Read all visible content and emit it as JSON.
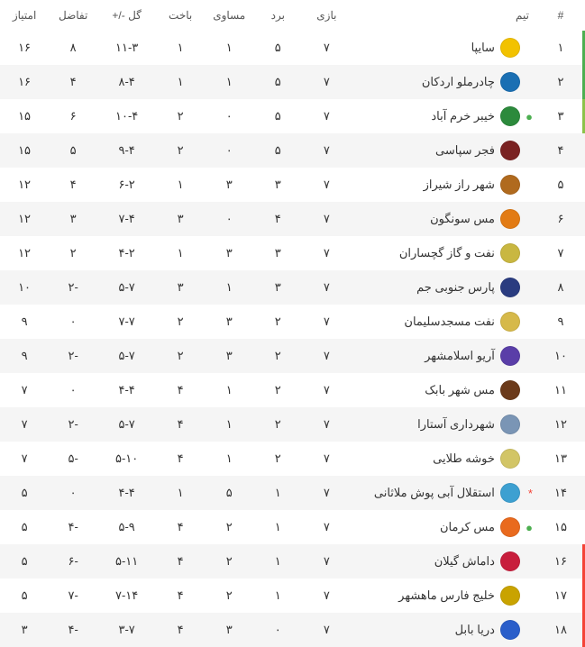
{
  "columns": {
    "rank": "#",
    "team": "تیم",
    "played": "بازی",
    "wins": "برد",
    "draws": "مساوی",
    "losses": "باخت",
    "goals": "گل -/+",
    "diff": "تفاضل",
    "points": "امتیاز"
  },
  "rank_bars": {
    "1": "bar-green",
    "2": "bar-green",
    "3": "bar-lightgreen",
    "16": "bar-red",
    "17": "bar-red",
    "18": "bar-red"
  },
  "rows": [
    {
      "rank": "۱",
      "team": "سایپا",
      "logo": "#f2c200",
      "marker": "",
      "marker_class": "",
      "played": "۷",
      "wins": "۵",
      "draws": "۱",
      "losses": "۱",
      "goals": "۱۱-۳",
      "diff": "۸",
      "points": "۱۶"
    },
    {
      "rank": "۲",
      "team": "چادرملو اردکان",
      "logo": "#1a6fb3",
      "marker": "",
      "marker_class": "",
      "played": "۷",
      "wins": "۵",
      "draws": "۱",
      "losses": "۱",
      "goals": "۸-۴",
      "diff": "۴",
      "points": "۱۶"
    },
    {
      "rank": "۳",
      "team": "خیبر خرم آباد",
      "logo": "#2c8a3c",
      "marker": "●",
      "marker_class": "marker-green",
      "played": "۷",
      "wins": "۵",
      "draws": "۰",
      "losses": "۲",
      "goals": "۱۰-۴",
      "diff": "۶",
      "points": "۱۵"
    },
    {
      "rank": "۴",
      "team": "فجر سپاسی",
      "logo": "#7a2222",
      "marker": "",
      "marker_class": "",
      "played": "۷",
      "wins": "۵",
      "draws": "۰",
      "losses": "۲",
      "goals": "۹-۴",
      "diff": "۵",
      "points": "۱۵"
    },
    {
      "rank": "۵",
      "team": "شهر راز شیراز",
      "logo": "#b06a1e",
      "marker": "",
      "marker_class": "",
      "played": "۷",
      "wins": "۳",
      "draws": "۳",
      "losses": "۱",
      "goals": "۶-۲",
      "diff": "۴",
      "points": "۱۲"
    },
    {
      "rank": "۶",
      "team": "مس سونگون",
      "logo": "#e27b14",
      "marker": "",
      "marker_class": "",
      "played": "۷",
      "wins": "۴",
      "draws": "۰",
      "losses": "۳",
      "goals": "۷-۴",
      "diff": "۳",
      "points": "۱۲"
    },
    {
      "rank": "۷",
      "team": "نفت و گاز گچساران",
      "logo": "#c9b741",
      "marker": "",
      "marker_class": "",
      "played": "۷",
      "wins": "۳",
      "draws": "۳",
      "losses": "۱",
      "goals": "۴-۲",
      "diff": "۲",
      "points": "۱۲"
    },
    {
      "rank": "۸",
      "team": "پارس جنوبی جم",
      "logo": "#2a3c80",
      "marker": "",
      "marker_class": "",
      "played": "۷",
      "wins": "۳",
      "draws": "۱",
      "losses": "۳",
      "goals": "۵-۷",
      "diff": "-۲",
      "points": "۱۰"
    },
    {
      "rank": "۹",
      "team": "نفت مسجدسلیمان",
      "logo": "#d6b94a",
      "marker": "",
      "marker_class": "",
      "played": "۷",
      "wins": "۲",
      "draws": "۳",
      "losses": "۲",
      "goals": "۷-۷",
      "diff": "۰",
      "points": "۹"
    },
    {
      "rank": "۱۰",
      "team": "آریو اسلامشهر",
      "logo": "#5a3ea8",
      "marker": "",
      "marker_class": "",
      "played": "۷",
      "wins": "۲",
      "draws": "۳",
      "losses": "۲",
      "goals": "۵-۷",
      "diff": "-۲",
      "points": "۹"
    },
    {
      "rank": "۱۱",
      "team": "مس شهر بابک",
      "logo": "#6b3a1a",
      "marker": "",
      "marker_class": "",
      "played": "۷",
      "wins": "۲",
      "draws": "۱",
      "losses": "۴",
      "goals": "۴-۴",
      "diff": "۰",
      "points": "۷"
    },
    {
      "rank": "۱۲",
      "team": "شهرداری آستارا",
      "logo": "#7a95b5",
      "marker": "",
      "marker_class": "",
      "played": "۷",
      "wins": "۲",
      "draws": "۱",
      "losses": "۴",
      "goals": "۵-۷",
      "diff": "-۲",
      "points": "۷"
    },
    {
      "rank": "۱۳",
      "team": "خوشه طلایی",
      "logo": "#d2c566",
      "marker": "",
      "marker_class": "",
      "played": "۷",
      "wins": "۲",
      "draws": "۱",
      "losses": "۴",
      "goals": "۵-۱۰",
      "diff": "-۵",
      "points": "۷"
    },
    {
      "rank": "۱۴",
      "team": "استقلال آبی پوش ملاثانی",
      "logo": "#3da0d1",
      "marker": "*",
      "marker_class": "marker-red",
      "played": "۷",
      "wins": "۱",
      "draws": "۵",
      "losses": "۱",
      "goals": "۴-۴",
      "diff": "۰",
      "points": "۵"
    },
    {
      "rank": "۱۵",
      "team": "مس کرمان",
      "logo": "#e96a1e",
      "marker": "●",
      "marker_class": "marker-green",
      "played": "۷",
      "wins": "۱",
      "draws": "۲",
      "losses": "۴",
      "goals": "۵-۹",
      "diff": "-۴",
      "points": "۵"
    },
    {
      "rank": "۱۶",
      "team": "داماش گیلان",
      "logo": "#c81e3c",
      "marker": "",
      "marker_class": "",
      "played": "۷",
      "wins": "۱",
      "draws": "۲",
      "losses": "۴",
      "goals": "۵-۱۱",
      "diff": "-۶",
      "points": "۵"
    },
    {
      "rank": "۱۷",
      "team": "خلیج فارس ماهشهر",
      "logo": "#c9a300",
      "marker": "",
      "marker_class": "",
      "played": "۷",
      "wins": "۱",
      "draws": "۲",
      "losses": "۴",
      "goals": "۷-۱۴",
      "diff": "-۷",
      "points": "۵"
    },
    {
      "rank": "۱۸",
      "team": "دریا بابل",
      "logo": "#2a5eca",
      "marker": "",
      "marker_class": "",
      "played": "۷",
      "wins": "۰",
      "draws": "۳",
      "losses": "۴",
      "goals": "۳-۷",
      "diff": "-۴",
      "points": "۳"
    }
  ]
}
